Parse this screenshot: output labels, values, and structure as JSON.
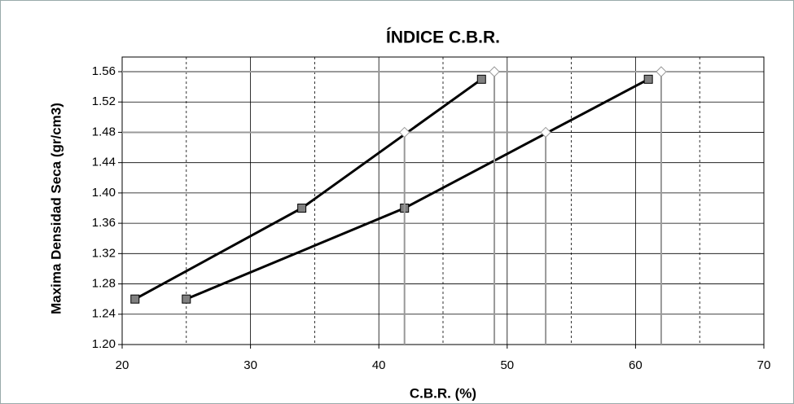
{
  "chart_data": {
    "type": "line",
    "title": "ÍNDICE C.B.R.",
    "x_label": "C.B.R. (%)",
    "y_label": "Maxima Densidad Seca (gr/cm3)",
    "xlim": [
      20,
      70
    ],
    "xticks": [
      20,
      30,
      40,
      50,
      60,
      70
    ],
    "x_minor_grid": [
      25,
      35,
      45,
      55,
      65
    ],
    "ylim": [
      1.2,
      1.56
    ],
    "yticks": [
      {
        "value": 1.2,
        "label": "1.20"
      },
      {
        "value": 1.24,
        "label": "1.24"
      },
      {
        "value": 1.28,
        "label": "1.28"
      },
      {
        "value": 1.32,
        "label": "1.32"
      },
      {
        "value": 1.36,
        "label": "1.36"
      },
      {
        "value": 1.4,
        "label": "1.40"
      },
      {
        "value": 1.44,
        "label": "1.44"
      },
      {
        "value": 1.48,
        "label": "1.48"
      },
      {
        "value": 1.52,
        "label": "1.52"
      },
      {
        "value": 1.56,
        "label": "1.56"
      }
    ],
    "grid": true,
    "series": [
      {
        "color": "#000000",
        "marker": "square",
        "x": [
          21,
          34,
          48
        ],
        "values": [
          1.26,
          1.38,
          1.55
        ]
      },
      {
        "color": "#000000",
        "marker": "square",
        "x": [
          25,
          42,
          61
        ],
        "values": [
          1.26,
          1.38,
          1.55
        ]
      },
      {
        "color": "#999999",
        "marker": "diamond",
        "reference_lines": true,
        "x": [
          42,
          49,
          53,
          62
        ],
        "values": [
          1.48,
          1.56,
          1.48,
          1.56
        ]
      }
    ]
  }
}
